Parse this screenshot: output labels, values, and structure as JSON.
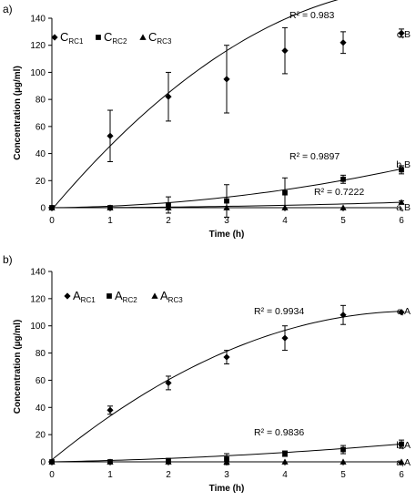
{
  "chart_data": [
    {
      "type": "scatter",
      "panel_label": "a)",
      "xlabel": "Time (h)",
      "ylabel": "Concentration (µg/ml)",
      "xlim": [
        0,
        6
      ],
      "ylim": [
        0,
        140
      ],
      "x_ticks": [
        "0",
        "1",
        "2",
        "3",
        "4",
        "5",
        "6"
      ],
      "y_ticks": [
        "0",
        "20",
        "40",
        "60",
        "80",
        "100",
        "120",
        "140"
      ],
      "grid": false,
      "legend_position": "top-left",
      "series": [
        {
          "name": "C",
          "name_sub": "RC1",
          "marker": "diamond",
          "x": [
            0,
            1,
            2,
            3,
            4,
            5,
            6
          ],
          "y": [
            0,
            53,
            82,
            95,
            116,
            122,
            129
          ],
          "error": [
            0,
            19,
            18,
            25,
            17,
            8,
            3
          ],
          "trendline": {
            "type": "polynomial",
            "r2_label": "R² = 0.983",
            "coeffs": [
              -1.43,
              51.0,
              -3.95
            ]
          },
          "end_label": "c,B"
        },
        {
          "name": "C",
          "name_sub": "RC2",
          "marker": "square",
          "x": [
            0,
            1,
            2,
            3,
            4,
            5,
            6
          ],
          "y": [
            0,
            0,
            2,
            5,
            11,
            21,
            28
          ],
          "error": [
            0,
            0,
            6,
            12,
            11,
            3,
            3
          ],
          "trendline": {
            "type": "polynomial",
            "r2_label": "R² = 0.9897",
            "coeffs": [
              0,
              0.4,
              0.73
            ]
          },
          "end_label": "b,B"
        },
        {
          "name": "C",
          "name_sub": "RC3",
          "marker": "triangle",
          "x": [
            0,
            1,
            2,
            3,
            4,
            5,
            6
          ],
          "y": [
            0,
            0,
            0,
            0,
            0,
            0,
            4
          ],
          "error": [
            0,
            0,
            0,
            0,
            0,
            0,
            1
          ],
          "trendline": {
            "type": "polynomial",
            "r2_label": "R² = 0.7222",
            "coeffs": [
              0,
              0,
              0.11
            ]
          },
          "end_label": "a,B"
        }
      ]
    },
    {
      "type": "scatter",
      "panel_label": "b)",
      "xlabel": "Time (h)",
      "ylabel": "Concentration (µg/ml)",
      "xlim": [
        0,
        6
      ],
      "ylim": [
        0,
        140
      ],
      "x_ticks": [
        "0",
        "1",
        "2",
        "3",
        "4",
        "5",
        "6"
      ],
      "y_ticks": [
        "0",
        "20",
        "40",
        "60",
        "80",
        "100",
        "120",
        "140"
      ],
      "grid": false,
      "legend_position": "top-left",
      "series": [
        {
          "name": "A",
          "name_sub": "RC1",
          "marker": "diamond",
          "x": [
            0,
            1,
            2,
            3,
            4,
            5,
            6
          ],
          "y": [
            0,
            38,
            58,
            77,
            91,
            108,
            110
          ],
          "error": [
            0,
            3,
            5,
            5,
            9,
            7,
            0
          ],
          "trendline": {
            "type": "polynomial",
            "r2_label": "R² = 0.9934",
            "coeffs": [
              1.5,
              35.0,
              -2.8
            ]
          },
          "end_label": "c,A"
        },
        {
          "name": "A",
          "name_sub": "RC2",
          "marker": "square",
          "x": [
            0,
            1,
            2,
            3,
            4,
            5,
            6
          ],
          "y": [
            0,
            0,
            1,
            2,
            6,
            9,
            13
          ],
          "error": [
            0,
            0,
            0,
            4,
            2,
            3,
            3
          ],
          "trendline": {
            "type": "polynomial",
            "r2_label": "R² = 0.9836",
            "coeffs": [
              0,
              0.8,
              0.23
            ]
          },
          "end_label": "b,A"
        },
        {
          "name": "A",
          "name_sub": "RC3",
          "marker": "triangle",
          "x": [
            0,
            1,
            2,
            3,
            4,
            5,
            6
          ],
          "y": [
            0,
            0,
            0,
            0,
            0,
            0,
            0
          ],
          "error": [
            0,
            0,
            0,
            0,
            0,
            0,
            0
          ],
          "trendline": null,
          "end_label": "a,A"
        }
      ]
    }
  ]
}
